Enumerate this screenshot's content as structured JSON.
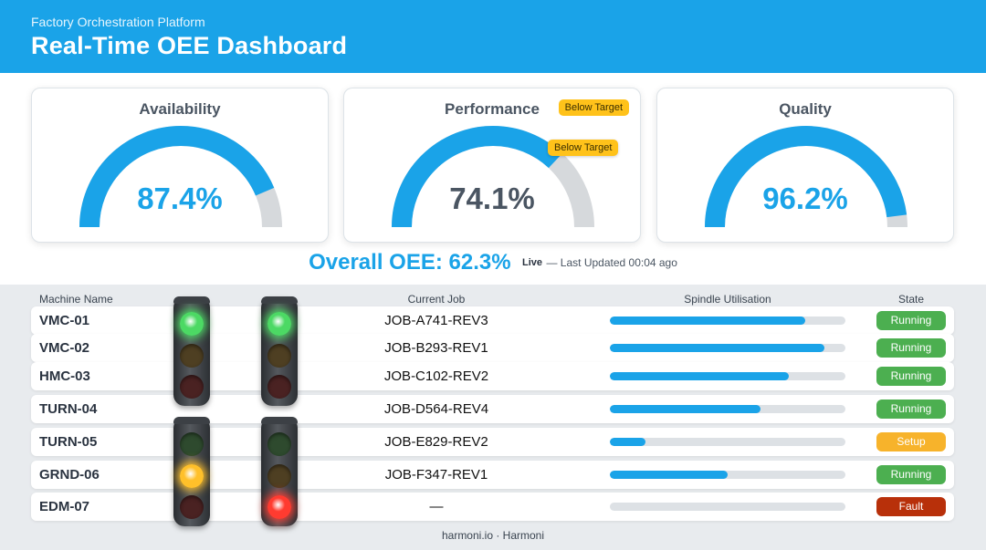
{
  "header": {
    "subtitle": "Factory Orchestration Platform",
    "title": "Real-Time OEE Dashboard"
  },
  "colors": {
    "accent": "#1aa3e8",
    "gauge_track": "#d6d9dc",
    "warning": "#ffc21a",
    "running": "#4caf50",
    "setup": "#f7b32b",
    "fault": "#b8300a"
  },
  "metrics": [
    {
      "label": "Availability",
      "value_text": "87.4%",
      "value": 87.4,
      "value_color": "#1aa3e8"
    },
    {
      "label": "Performance",
      "value_text": "74.1%",
      "value": 74.1,
      "value_color": "#4a5562",
      "badge": "Below Target",
      "marker_badge": "Below Target"
    },
    {
      "label": "Quality",
      "value_text": "96.2%",
      "value": 96.2,
      "value_color": "#1aa3e8"
    }
  ],
  "summary": {
    "oee": "Overall OEE: 62.3%",
    "live": "Live",
    "updated": "— Last Updated 00:04 ago"
  },
  "table": {
    "columns": [
      "Machine Name",
      "Current Job",
      "Spindle Utilisation",
      "State"
    ],
    "rows": [
      {
        "machine": "VMC-01",
        "job": "JOB-A741-REV3",
        "util": 0.83,
        "state": "Running",
        "state_color": "#4caf50"
      },
      {
        "machine": "VMC-02",
        "job": "JOB-B293-REV1",
        "util": 0.91,
        "state": "Running",
        "state_color": "#4caf50"
      },
      {
        "machine": "HMC-03",
        "job": "JOB-C102-REV2",
        "util": 0.76,
        "state": "Running",
        "state_color": "#4caf50"
      },
      {
        "machine": "TURN-04",
        "job": "JOB-D564-REV4",
        "util": 0.64,
        "state": "Running",
        "state_color": "#4caf50"
      },
      {
        "machine": "TURN-05",
        "job": "JOB-E829-REV2",
        "util": 0.15,
        "state": "Setup",
        "state_color": "#f7b32b"
      },
      {
        "machine": "GRND-06",
        "job": "JOB-F347-REV1",
        "util": 0.5,
        "state": "Running",
        "state_color": "#4caf50"
      },
      {
        "machine": "EDM-07",
        "job": "—",
        "util": 0,
        "state": "Fault",
        "state_color": "#b8300a"
      }
    ]
  },
  "signal_lights": [
    {
      "active": "green"
    },
    {
      "active": "green"
    },
    {
      "active": "amber"
    },
    {
      "active": "red"
    }
  ],
  "footer": "harmoni.io · Harmoni"
}
